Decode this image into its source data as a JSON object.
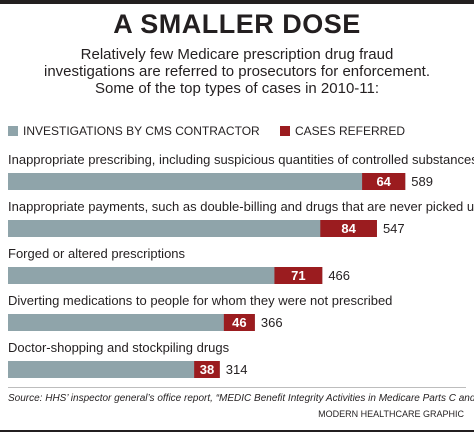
{
  "title": "A SMALLER DOSE",
  "subtitle_lines": [
    "Relatively few Medicare prescription drug fraud",
    "investigations are referred to prosecutors for enforcement.",
    "Some of the top types of cases in 2010-11:"
  ],
  "colors": {
    "investigations": "#8fa4aa",
    "referred": "#9b1c1f",
    "text": "#231f20"
  },
  "chart_data": {
    "type": "bar",
    "orientation": "horizontal",
    "stacked": "overlay",
    "categories": [
      "Inappropriate prescribing, including suspicious quantities of controlled substances",
      "Inappropriate payments, such as double-billing and drugs that are never picked up",
      "Forged or altered prescriptions",
      "Diverting medications to people for whom they were not prescribed",
      "Doctor-shopping and stockpiling drugs"
    ],
    "series": [
      {
        "name": "INVESTIGATIONS BY CMS CONTRACTOR",
        "values": [
          589,
          547,
          466,
          366,
          314
        ]
      },
      {
        "name": "CASES REFERRED",
        "values": [
          64,
          84,
          71,
          46,
          38
        ]
      }
    ],
    "legend_position": "top-left",
    "grid": false
  },
  "source": "Source: HHS’ inspector general’s office report, “MEDIC Benefit Integrity Activities in Medicare Parts C and D”",
  "credit": "MODERN HEALTHCARE GRAPHIC"
}
